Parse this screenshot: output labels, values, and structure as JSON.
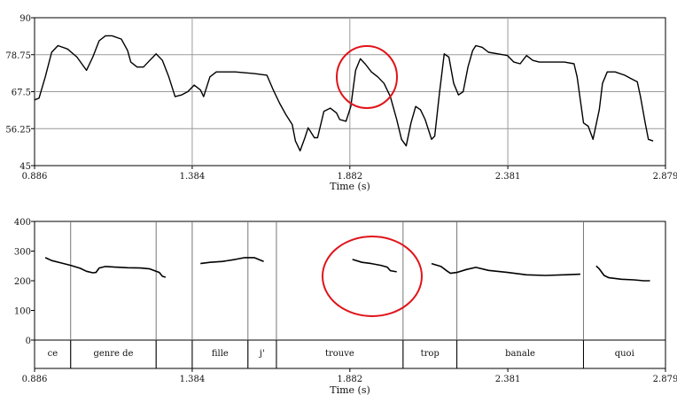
{
  "chart_data": [
    {
      "type": "line",
      "title": "",
      "xlabel": "Time (s)",
      "ylabel": "",
      "xlim": [
        0.886,
        2.879
      ],
      "ylim": [
        45,
        90
      ],
      "x_ticks": [
        "0.886",
        "1.384",
        "1.882",
        "2.381",
        "2.879"
      ],
      "y_ticks": [
        "45",
        "56.25",
        "67.5",
        "78.75",
        "90"
      ],
      "grid": true,
      "annotation": "red circle around the peak near 1.882 s",
      "series": [
        {
          "segments": [
            [
              [
                0.886,
                65.0
              ],
              [
                0.9,
                65.5
              ],
              [
                0.92,
                72.0
              ],
              [
                0.94,
                79.5
              ],
              [
                0.96,
                81.5
              ],
              [
                0.99,
                80.5
              ],
              [
                1.02,
                78.0
              ],
              [
                1.05,
                74.0
              ],
              [
                1.07,
                78.0
              ],
              [
                1.09,
                83.0
              ],
              [
                1.11,
                84.5
              ],
              [
                1.13,
                84.5
              ],
              [
                1.16,
                83.5
              ],
              [
                1.18,
                80.0
              ],
              [
                1.19,
                76.5
              ],
              [
                1.21,
                75.0
              ],
              [
                1.23,
                75.0
              ],
              [
                1.25,
                77.0
              ],
              [
                1.27,
                79.0
              ],
              [
                1.29,
                77.0
              ],
              [
                1.31,
                72.0
              ],
              [
                1.33,
                66.0
              ],
              [
                1.35,
                66.5
              ],
              [
                1.37,
                67.5
              ],
              [
                1.39,
                69.5
              ],
              [
                1.41,
                68.0
              ],
              [
                1.42,
                66.0
              ],
              [
                1.44,
                72.0
              ],
              [
                1.46,
                73.5
              ],
              [
                1.52,
                73.5
              ],
              [
                1.58,
                73.0
              ],
              [
                1.62,
                72.5
              ],
              [
                1.64,
                68.0
              ],
              [
                1.66,
                64.0
              ],
              [
                1.68,
                60.5
              ],
              [
                1.7,
                57.5
              ],
              [
                1.71,
                52.5
              ],
              [
                1.725,
                49.5
              ],
              [
                1.74,
                53.5
              ],
              [
                1.75,
                56.5
              ],
              [
                1.77,
                53.5
              ],
              [
                1.78,
                53.5
              ],
              [
                1.8,
                61.5
              ],
              [
                1.82,
                62.5
              ],
              [
                1.84,
                61.0
              ],
              [
                1.85,
                59.0
              ],
              [
                1.87,
                58.5
              ],
              [
                1.885,
                63.0
              ],
              [
                1.9,
                74.0
              ],
              [
                1.915,
                77.5
              ],
              [
                1.93,
                76.0
              ],
              [
                1.95,
                73.5
              ],
              [
                1.97,
                72.0
              ],
              [
                1.99,
                70.0
              ],
              [
                2.01,
                66.0
              ],
              [
                2.03,
                59.0
              ],
              [
                2.045,
                53.0
              ],
              [
                2.06,
                51.0
              ],
              [
                2.075,
                58.0
              ],
              [
                2.09,
                63.0
              ],
              [
                2.105,
                62.0
              ],
              [
                2.12,
                59.0
              ],
              [
                2.14,
                53.0
              ],
              [
                2.15,
                54.0
              ],
              [
                2.165,
                67.0
              ],
              [
                2.18,
                79.0
              ],
              [
                2.195,
                78.0
              ],
              [
                2.21,
                70.0
              ],
              [
                2.225,
                66.5
              ],
              [
                2.24,
                67.5
              ],
              [
                2.255,
                75.0
              ],
              [
                2.27,
                80.0
              ],
              [
                2.28,
                81.5
              ],
              [
                2.3,
                81.0
              ],
              [
                2.32,
                79.5
              ],
              [
                2.35,
                79.0
              ],
              [
                2.38,
                78.5
              ],
              [
                2.4,
                76.5
              ],
              [
                2.42,
                76.0
              ],
              [
                2.44,
                78.5
              ],
              [
                2.46,
                77.0
              ],
              [
                2.48,
                76.5
              ],
              [
                2.52,
                76.5
              ],
              [
                2.56,
                76.5
              ],
              [
                2.59,
                76.0
              ],
              [
                2.6,
                72.0
              ],
              [
                2.61,
                65.0
              ],
              [
                2.62,
                58.0
              ],
              [
                2.635,
                57.0
              ],
              [
                2.65,
                53.0
              ],
              [
                2.67,
                62.0
              ],
              [
                2.68,
                70.0
              ],
              [
                2.695,
                73.5
              ],
              [
                2.72,
                73.5
              ],
              [
                2.75,
                72.5
              ],
              [
                2.77,
                71.5
              ],
              [
                2.79,
                70.5
              ],
              [
                2.8,
                66.0
              ],
              [
                2.815,
                58.0
              ],
              [
                2.825,
                53.0
              ],
              [
                2.84,
                52.5
              ]
            ]
          ]
        }
      ]
    },
    {
      "type": "line",
      "title": "",
      "xlabel": "Time (s)",
      "ylabel": "",
      "xlim": [
        0.886,
        2.879
      ],
      "ylim": [
        0,
        400
      ],
      "x_ticks": [
        "0.886",
        "1.384",
        "1.882",
        "2.381",
        "2.879"
      ],
      "y_ticks": [
        "0",
        "100",
        "200",
        "300",
        "400"
      ],
      "grid": false,
      "annotation": "red circle around the pitch contour of \"trouve\"",
      "boundaries": [
        1.0,
        1.27,
        1.384,
        1.56,
        1.65,
        2.05,
        2.22,
        2.62
      ],
      "words": [
        {
          "label": "ce",
          "start": 0.886,
          "end": 1.0
        },
        {
          "label": "genre de",
          "start": 1.0,
          "end": 1.27
        },
        {
          "label": "",
          "start": 1.27,
          "end": 1.384
        },
        {
          "label": "fille",
          "start": 1.384,
          "end": 1.56
        },
        {
          "label": "j'",
          "start": 1.56,
          "end": 1.65
        },
        {
          "label": "trouve",
          "start": 1.65,
          "end": 2.05
        },
        {
          "label": "trop",
          "start": 2.05,
          "end": 2.22
        },
        {
          "label": "banale",
          "start": 2.22,
          "end": 2.62
        },
        {
          "label": "quoi",
          "start": 2.62,
          "end": 2.879
        }
      ],
      "series": [
        {
          "segments": [
            [
              [
                0.92,
                278
              ],
              [
                0.94,
                268
              ],
              [
                0.97,
                260
              ],
              [
                1.0,
                252
              ],
              [
                1.03,
                242
              ],
              [
                1.05,
                232
              ],
              [
                1.07,
                227
              ],
              [
                1.08,
                228
              ],
              [
                1.09,
                243
              ],
              [
                1.11,
                248
              ],
              [
                1.14,
                246
              ],
              [
                1.18,
                244
              ],
              [
                1.22,
                243
              ],
              [
                1.25,
                240
              ],
              [
                1.28,
                228
              ],
              [
                1.29,
                215
              ],
              [
                1.3,
                212
              ]
            ],
            [
              [
                1.41,
                258
              ],
              [
                1.44,
                262
              ],
              [
                1.48,
                265
              ],
              [
                1.52,
                272
              ],
              [
                1.55,
                278
              ],
              [
                1.58,
                278
              ],
              [
                1.61,
                265
              ]
            ],
            [
              [
                1.89,
                272
              ],
              [
                1.92,
                262
              ],
              [
                1.95,
                258
              ],
              [
                1.98,
                252
              ],
              [
                2.0,
                246
              ],
              [
                2.01,
                234
              ],
              [
                2.03,
                230
              ]
            ],
            [
              [
                2.14,
                258
              ],
              [
                2.17,
                248
              ],
              [
                2.19,
                232
              ],
              [
                2.2,
                225
              ],
              [
                2.22,
                228
              ],
              [
                2.25,
                238
              ],
              [
                2.28,
                245
              ],
              [
                2.32,
                235
              ],
              [
                2.38,
                228
              ],
              [
                2.44,
                220
              ],
              [
                2.5,
                218
              ],
              [
                2.56,
                220
              ],
              [
                2.61,
                222
              ]
            ],
            [
              [
                2.66,
                250
              ],
              [
                2.67,
                240
              ],
              [
                2.685,
                218
              ],
              [
                2.7,
                210
              ],
              [
                2.74,
                205
              ],
              [
                2.78,
                203
              ],
              [
                2.81,
                200
              ],
              [
                2.83,
                200
              ]
            ]
          ]
        }
      ]
    }
  ]
}
